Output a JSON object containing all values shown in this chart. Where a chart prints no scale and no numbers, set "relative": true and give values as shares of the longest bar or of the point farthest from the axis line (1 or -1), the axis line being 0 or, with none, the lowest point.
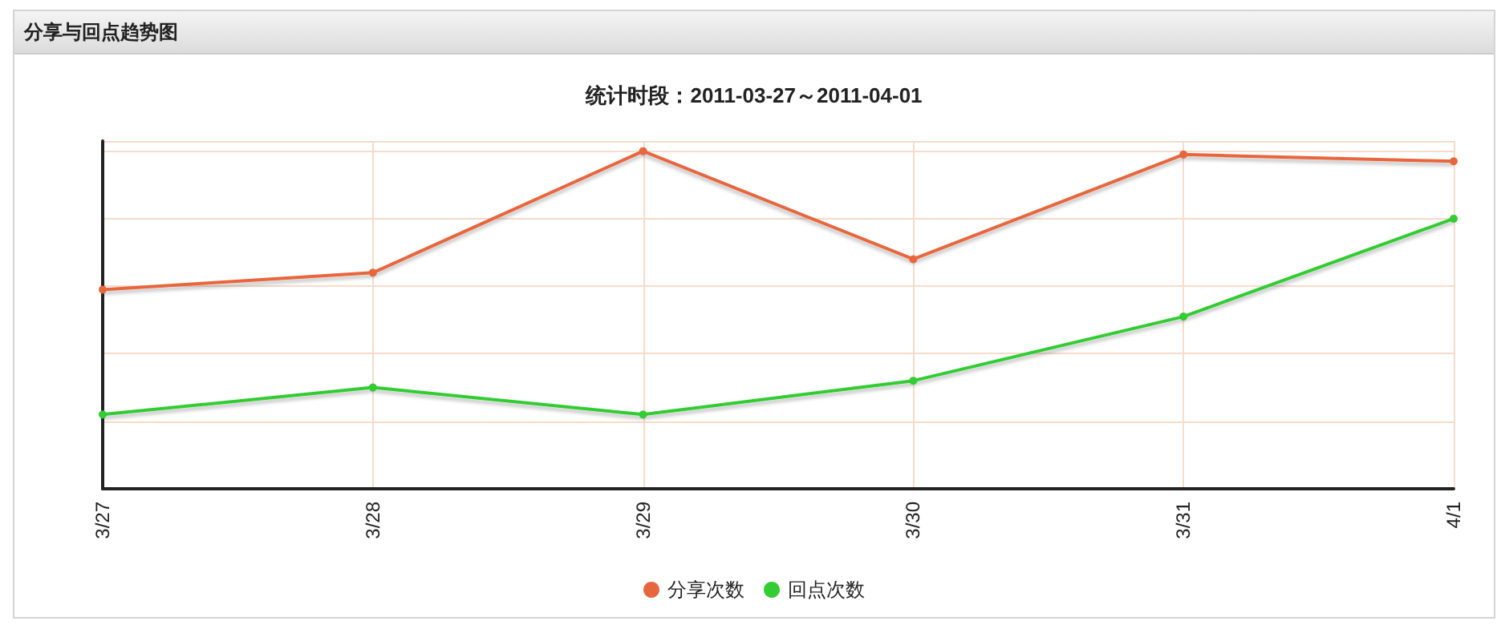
{
  "chart_data": {
    "type": "line",
    "title": "分享与回点趋势图",
    "subtitle": "统计时段：2011-03-27～2011-04-01",
    "relative": true,
    "categories": [
      "3/27",
      "3/28",
      "3/29",
      "3/30",
      "3/31",
      "4/1"
    ],
    "series": [
      {
        "name": "分享次数",
        "color": "#e8663d",
        "values": [
          0.59,
          0.64,
          1,
          0.68,
          0.99,
          0.97
        ]
      },
      {
        "name": "回点次数",
        "color": "#33cc33",
        "values": [
          0.22,
          0.3,
          0.22,
          0.32,
          0.51,
          0.8
        ]
      }
    ],
    "grid": true,
    "legend": "bottom",
    "marker": "circle",
    "line_style": "solid"
  }
}
